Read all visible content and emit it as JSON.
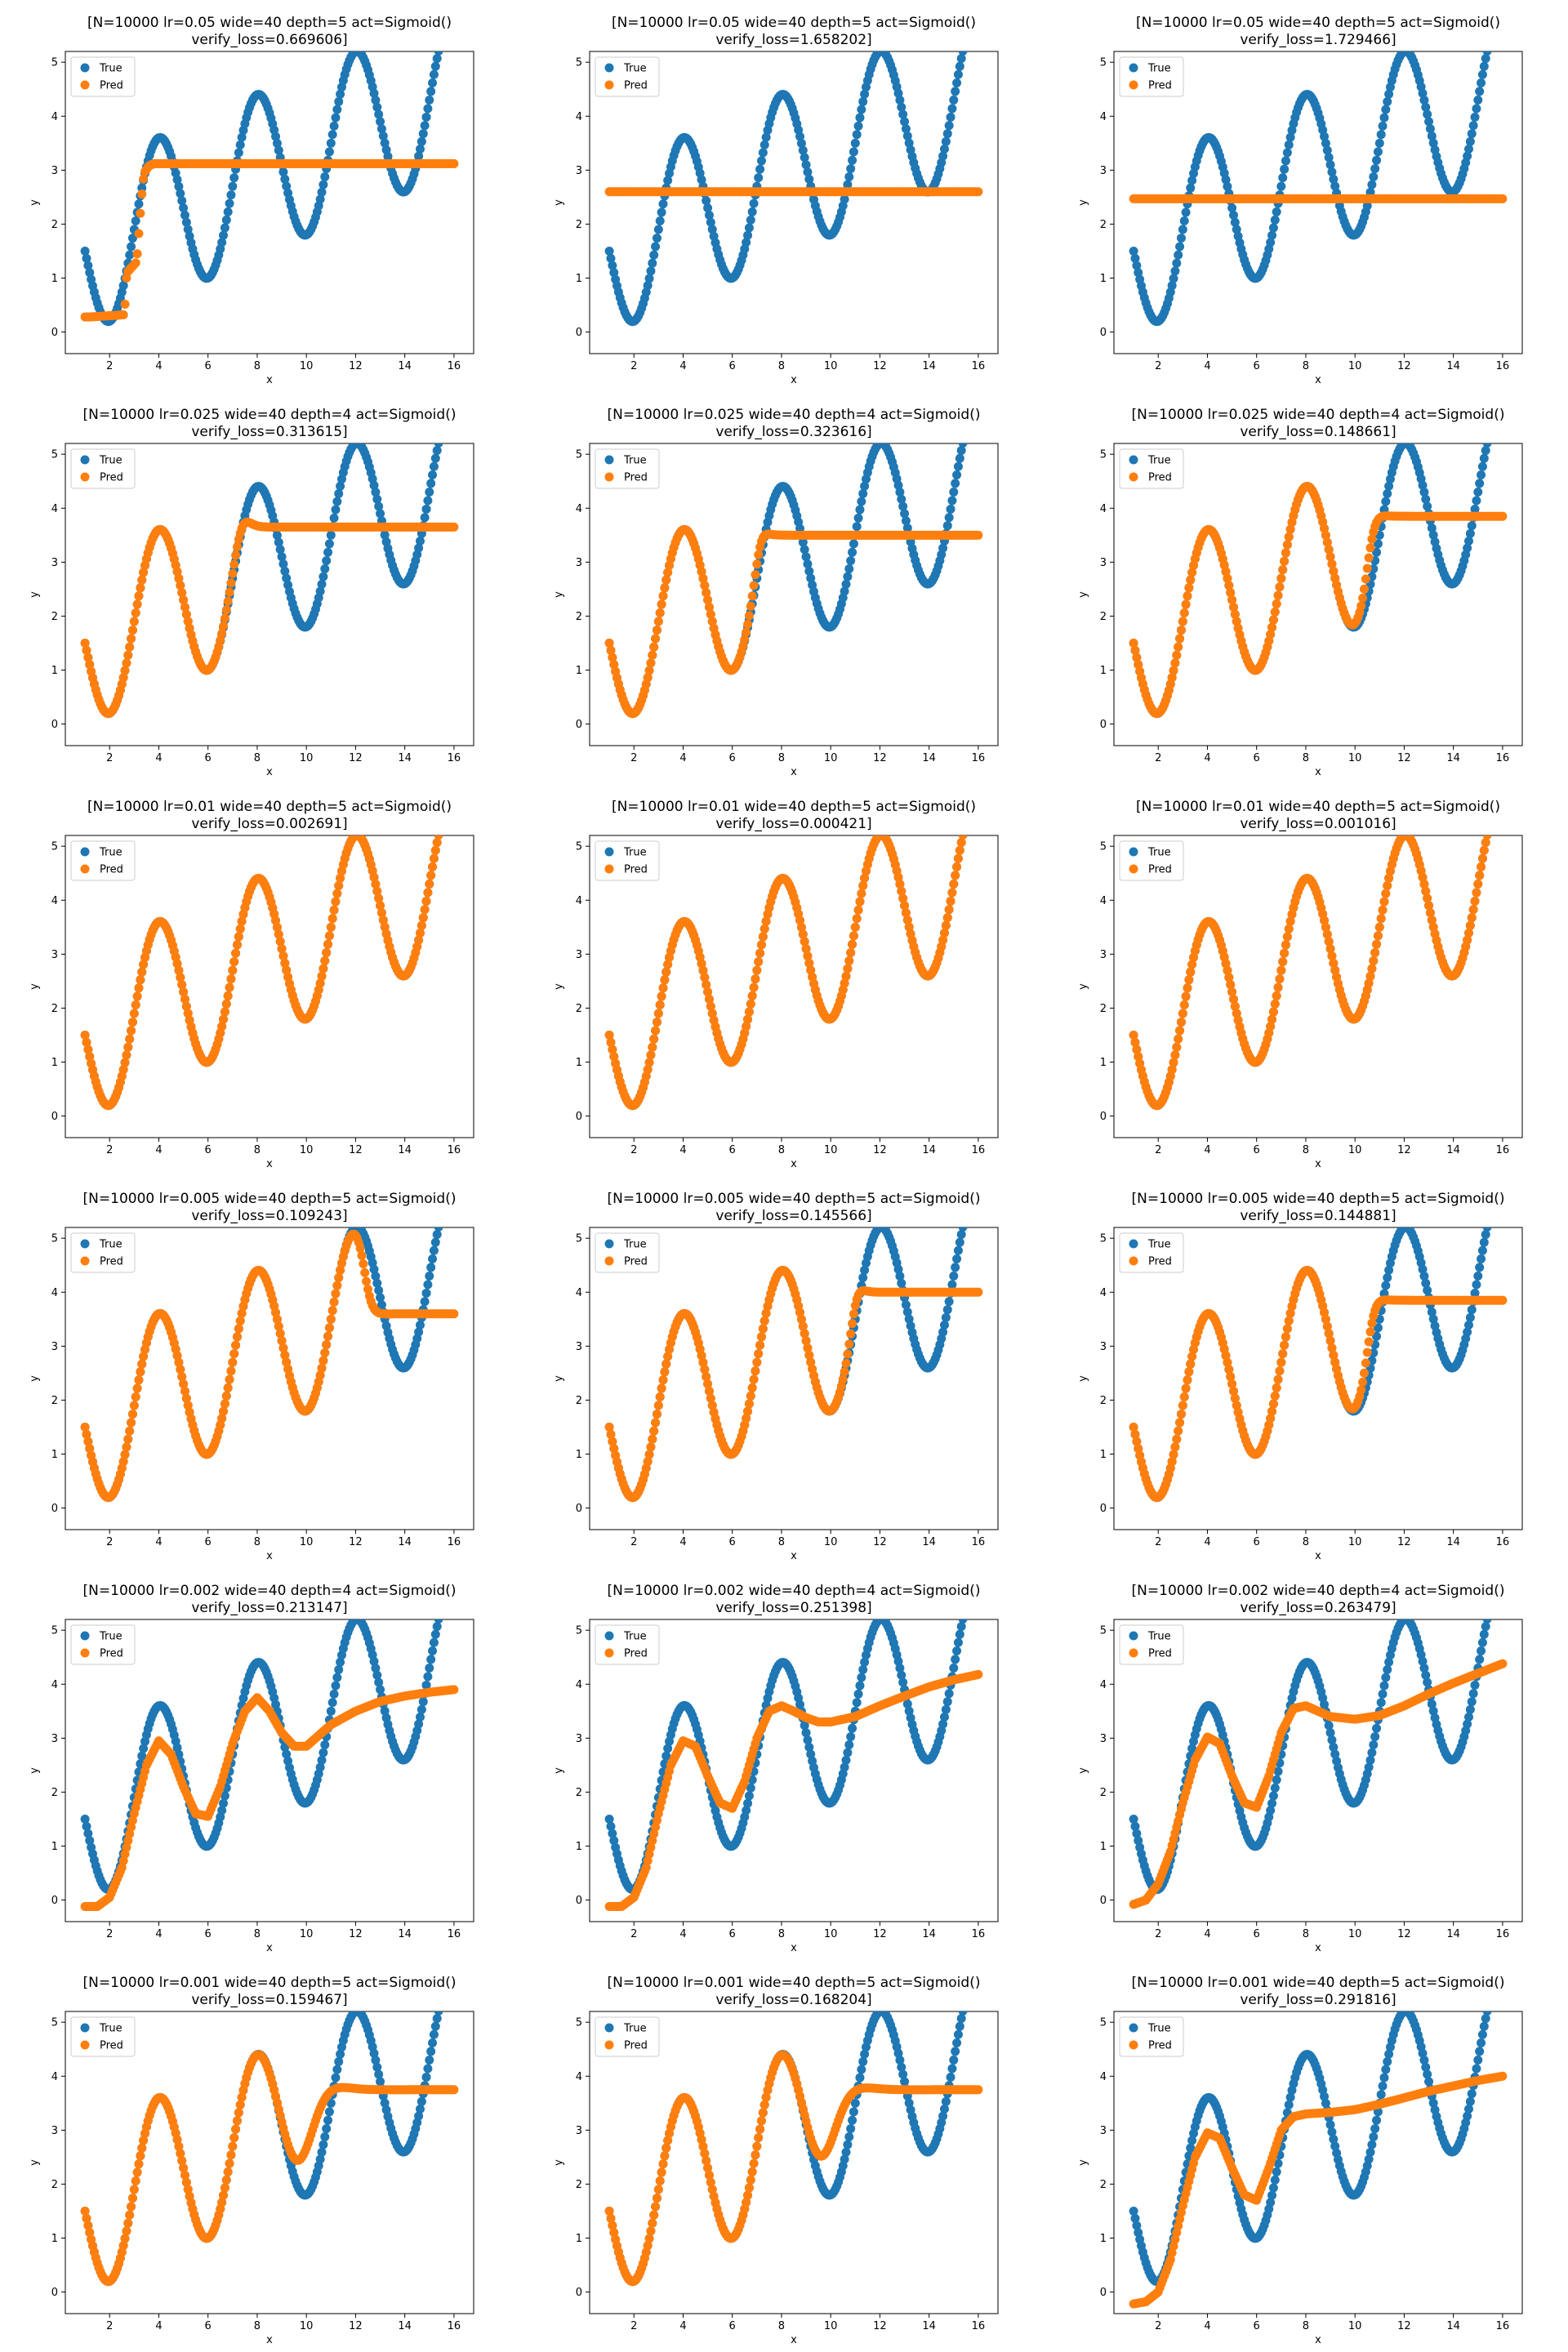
{
  "figure": {
    "background": "#ffffff",
    "colors": {
      "True": "#1f77b4",
      "Pred": "#ff7f0e"
    }
  },
  "chart_data": [
    {
      "type": "scatter",
      "title": "[N=10000 lr=0.05 wide=40 depth=5 act=Sigmoid()",
      "subtitle": "verify_loss=0.669606]",
      "xlabel": "x",
      "ylabel": "y",
      "xlim": [
        0.2,
        16.8
      ],
      "ylim": [
        -0.4,
        5.2
      ],
      "xticks": [
        2,
        4,
        6,
        8,
        10,
        12,
        14,
        16
      ],
      "yticks": [
        0,
        1,
        2,
        3,
        4,
        5
      ],
      "legend": [
        "True",
        "Pred"
      ],
      "legend_position": "upper left",
      "pred": {
        "kind": "piecewise",
        "knots": [
          [
            1,
            0.28
          ],
          [
            1.2,
            0.28
          ],
          [
            2.6,
            0.32
          ],
          [
            2.7,
            1.1
          ],
          [
            3.1,
            1.3
          ],
          [
            3.2,
            1.9
          ],
          [
            3.3,
            2.5
          ],
          [
            3.4,
            2.95
          ],
          [
            3.6,
            3.08
          ],
          [
            3.8,
            3.12
          ],
          [
            16,
            3.12
          ]
        ]
      }
    },
    {
      "type": "scatter",
      "title": "[N=10000 lr=0.05 wide=40 depth=5 act=Sigmoid()",
      "subtitle": "verify_loss=1.658202]",
      "xlabel": "x",
      "ylabel": "y",
      "xlim": [
        0.2,
        16.8
      ],
      "ylim": [
        -0.4,
        5.2
      ],
      "xticks": [
        2,
        4,
        6,
        8,
        10,
        12,
        14,
        16
      ],
      "yticks": [
        0,
        1,
        2,
        3,
        4,
        5
      ],
      "legend": [
        "True",
        "Pred"
      ],
      "legend_position": "upper left",
      "pred": {
        "kind": "piecewise",
        "knots": [
          [
            1,
            2.6
          ],
          [
            16,
            2.6
          ]
        ]
      }
    },
    {
      "type": "scatter",
      "title": "[N=10000 lr=0.05 wide=40 depth=5 act=Sigmoid()",
      "subtitle": "verify_loss=1.729466]",
      "xlabel": "x",
      "ylabel": "y",
      "xlim": [
        0.2,
        16.8
      ],
      "ylim": [
        -0.4,
        5.2
      ],
      "xticks": [
        2,
        4,
        6,
        8,
        10,
        12,
        14,
        16
      ],
      "yticks": [
        0,
        1,
        2,
        3,
        4,
        5
      ],
      "legend": [
        "True",
        "Pred"
      ],
      "legend_position": "upper left",
      "pred": {
        "kind": "piecewise",
        "knots": [
          [
            1,
            2.47
          ],
          [
            16,
            2.47
          ]
        ]
      }
    },
    {
      "type": "scatter",
      "title": "[N=10000 lr=0.025 wide=40 depth=4 act=Sigmoid()",
      "subtitle": "verify_loss=0.313615]",
      "xlabel": "x",
      "ylabel": "y",
      "xlim": [
        0.2,
        16.8
      ],
      "ylim": [
        -0.4,
        5.2
      ],
      "xticks": [
        2,
        4,
        6,
        8,
        10,
        12,
        14,
        16
      ],
      "yticks": [
        0,
        1,
        2,
        3,
        4,
        5
      ],
      "legend": [
        "True",
        "Pred"
      ],
      "legend_position": "upper left",
      "pred": {
        "kind": "follow",
        "until": 7.4,
        "plateau": 3.65,
        "width": 0.5
      }
    },
    {
      "type": "scatter",
      "title": "[N=10000 lr=0.025 wide=40 depth=4 act=Sigmoid()",
      "subtitle": "verify_loss=0.323616]",
      "xlabel": "x",
      "ylabel": "y",
      "xlim": [
        0.2,
        16.8
      ],
      "ylim": [
        -0.4,
        5.2
      ],
      "xticks": [
        2,
        4,
        6,
        8,
        10,
        12,
        14,
        16
      ],
      "yticks": [
        0,
        1,
        2,
        3,
        4,
        5
      ],
      "legend": [
        "True",
        "Pred"
      ],
      "legend_position": "upper left",
      "pred": {
        "kind": "follow",
        "until": 7.1,
        "plateau": 3.5,
        "width": 0.4
      }
    },
    {
      "type": "scatter",
      "title": "[N=10000 lr=0.025 wide=40 depth=4 act=Sigmoid()",
      "subtitle": "verify_loss=0.148661]",
      "xlabel": "x",
      "ylabel": "y",
      "xlim": [
        0.2,
        16.8
      ],
      "ylim": [
        -0.4,
        5.2
      ],
      "xticks": [
        2,
        4,
        6,
        8,
        10,
        12,
        14,
        16
      ],
      "yticks": [
        0,
        1,
        2,
        3,
        4,
        5
      ],
      "legend": [
        "True",
        "Pred"
      ],
      "legend_position": "upper left",
      "pred": {
        "kind": "follow",
        "until": 10.6,
        "plateau": 3.85,
        "width": 0.5
      }
    },
    {
      "type": "scatter",
      "title": "[N=10000 lr=0.01 wide=40 depth=5 act=Sigmoid()",
      "subtitle": "verify_loss=0.002691]",
      "xlabel": "x",
      "ylabel": "y",
      "xlim": [
        0.2,
        16.8
      ],
      "ylim": [
        -0.4,
        5.2
      ],
      "xticks": [
        2,
        4,
        6,
        8,
        10,
        12,
        14,
        16
      ],
      "yticks": [
        0,
        1,
        2,
        3,
        4,
        5
      ],
      "legend": [
        "True",
        "Pred"
      ],
      "legend_position": "upper left",
      "pred": {
        "kind": "follow",
        "until": 16,
        "plateau": 5,
        "width": 0.3
      }
    },
    {
      "type": "scatter",
      "title": "[N=10000 lr=0.01 wide=40 depth=5 act=Sigmoid()",
      "subtitle": "verify_loss=0.000421]",
      "xlabel": "x",
      "ylabel": "y",
      "xlim": [
        0.2,
        16.8
      ],
      "ylim": [
        -0.4,
        5.2
      ],
      "xticks": [
        2,
        4,
        6,
        8,
        10,
        12,
        14,
        16
      ],
      "yticks": [
        0,
        1,
        2,
        3,
        4,
        5
      ],
      "legend": [
        "True",
        "Pred"
      ],
      "legend_position": "upper left",
      "pred": {
        "kind": "follow",
        "until": 16,
        "plateau": 5,
        "width": 0.3
      }
    },
    {
      "type": "scatter",
      "title": "[N=10000 lr=0.01 wide=40 depth=5 act=Sigmoid()",
      "subtitle": "verify_loss=0.001016]",
      "xlabel": "x",
      "ylabel": "y",
      "xlim": [
        0.2,
        16.8
      ],
      "ylim": [
        -0.4,
        5.2
      ],
      "xticks": [
        2,
        4,
        6,
        8,
        10,
        12,
        14,
        16
      ],
      "yticks": [
        0,
        1,
        2,
        3,
        4,
        5
      ],
      "legend": [
        "True",
        "Pred"
      ],
      "legend_position": "upper left",
      "pred": {
        "kind": "follow",
        "until": 16,
        "plateau": 5,
        "width": 0.3
      }
    },
    {
      "type": "scatter",
      "title": "[N=10000 lr=0.005 wide=40 depth=5 act=Sigmoid()",
      "subtitle": "verify_loss=0.109243]",
      "xlabel": "x",
      "ylabel": "y",
      "xlim": [
        0.2,
        16.8
      ],
      "ylim": [
        -0.4,
        5.2
      ],
      "xticks": [
        2,
        4,
        6,
        8,
        10,
        12,
        14,
        16
      ],
      "yticks": [
        0,
        1,
        2,
        3,
        4,
        5
      ],
      "legend": [
        "True",
        "Pred"
      ],
      "legend_position": "upper left",
      "pred": {
        "kind": "follow",
        "until": 12.4,
        "plateau": 3.6,
        "width": 0.5
      }
    },
    {
      "type": "scatter",
      "title": "[N=10000 lr=0.005 wide=40 depth=5 act=Sigmoid()",
      "subtitle": "verify_loss=0.145566]",
      "xlabel": "x",
      "ylabel": "y",
      "xlim": [
        0.2,
        16.8
      ],
      "ylim": [
        -0.4,
        5.2
      ],
      "xticks": [
        2,
        4,
        6,
        8,
        10,
        12,
        14,
        16
      ],
      "yticks": [
        0,
        1,
        2,
        3,
        4,
        5
      ],
      "legend": [
        "True",
        "Pred"
      ],
      "legend_position": "upper left",
      "pred": {
        "kind": "follow",
        "until": 11.0,
        "plateau": 4.0,
        "width": 0.4
      }
    },
    {
      "type": "scatter",
      "title": "[N=10000 lr=0.005 wide=40 depth=5 act=Sigmoid()",
      "subtitle": "verify_loss=0.144881]",
      "xlabel": "x",
      "ylabel": "y",
      "xlim": [
        0.2,
        16.8
      ],
      "ylim": [
        -0.4,
        5.2
      ],
      "xticks": [
        2,
        4,
        6,
        8,
        10,
        12,
        14,
        16
      ],
      "yticks": [
        0,
        1,
        2,
        3,
        4,
        5
      ],
      "legend": [
        "True",
        "Pred"
      ],
      "legend_position": "upper left",
      "pred": {
        "kind": "follow",
        "until": 10.6,
        "plateau": 3.85,
        "width": 0.5
      }
    },
    {
      "type": "scatter",
      "title": "[N=10000 lr=0.002 wide=40 depth=4 act=Sigmoid()",
      "subtitle": "verify_loss=0.213147]",
      "xlabel": "x",
      "ylabel": "y",
      "xlim": [
        0.2,
        16.8
      ],
      "ylim": [
        -0.4,
        5.2
      ],
      "xticks": [
        2,
        4,
        6,
        8,
        10,
        12,
        14,
        16
      ],
      "yticks": [
        0,
        1,
        2,
        3,
        4,
        5
      ],
      "legend": [
        "True",
        "Pred"
      ],
      "legend_position": "upper left",
      "pred": {
        "kind": "piecewise",
        "knots": [
          [
            1,
            -0.12
          ],
          [
            1.5,
            -0.12
          ],
          [
            2.0,
            0.05
          ],
          [
            2.5,
            0.6
          ],
          [
            3.0,
            1.6
          ],
          [
            3.5,
            2.5
          ],
          [
            4.0,
            2.95
          ],
          [
            4.5,
            2.7
          ],
          [
            5.0,
            2.1
          ],
          [
            5.5,
            1.6
          ],
          [
            6.0,
            1.55
          ],
          [
            6.5,
            2.1
          ],
          [
            7.0,
            2.9
          ],
          [
            7.5,
            3.5
          ],
          [
            8.0,
            3.75
          ],
          [
            8.5,
            3.5
          ],
          [
            9.0,
            3.1
          ],
          [
            9.5,
            2.85
          ],
          [
            10.0,
            2.85
          ],
          [
            10.5,
            3.05
          ],
          [
            11,
            3.25
          ],
          [
            12,
            3.5
          ],
          [
            13,
            3.68
          ],
          [
            14,
            3.78
          ],
          [
            15,
            3.85
          ],
          [
            16,
            3.9
          ]
        ]
      }
    },
    {
      "type": "scatter",
      "title": "[N=10000 lr=0.002 wide=40 depth=4 act=Sigmoid()",
      "subtitle": "verify_loss=0.251398]",
      "xlabel": "x",
      "ylabel": "y",
      "xlim": [
        0.2,
        16.8
      ],
      "ylim": [
        -0.4,
        5.2
      ],
      "xticks": [
        2,
        4,
        6,
        8,
        10,
        12,
        14,
        16
      ],
      "yticks": [
        0,
        1,
        2,
        3,
        4,
        5
      ],
      "legend": [
        "True",
        "Pred"
      ],
      "legend_position": "upper left",
      "pred": {
        "kind": "piecewise",
        "knots": [
          [
            1,
            -0.12
          ],
          [
            1.5,
            -0.12
          ],
          [
            2.0,
            0.05
          ],
          [
            2.5,
            0.6
          ],
          [
            3.0,
            1.6
          ],
          [
            3.5,
            2.5
          ],
          [
            4.0,
            2.95
          ],
          [
            4.5,
            2.85
          ],
          [
            5.0,
            2.3
          ],
          [
            5.5,
            1.8
          ],
          [
            6.0,
            1.7
          ],
          [
            6.5,
            2.2
          ],
          [
            7.0,
            3.0
          ],
          [
            7.5,
            3.5
          ],
          [
            8.0,
            3.6
          ],
          [
            8.5,
            3.5
          ],
          [
            9.0,
            3.38
          ],
          [
            9.5,
            3.3
          ],
          [
            10,
            3.3
          ],
          [
            11,
            3.4
          ],
          [
            12,
            3.6
          ],
          [
            13,
            3.78
          ],
          [
            14,
            3.95
          ],
          [
            15,
            4.08
          ],
          [
            16,
            4.18
          ]
        ]
      }
    },
    {
      "type": "scatter",
      "title": "[N=10000 lr=0.002 wide=40 depth=4 act=Sigmoid()",
      "subtitle": "verify_loss=0.263479]",
      "xlabel": "x",
      "ylabel": "y",
      "xlim": [
        0.2,
        16.8
      ],
      "ylim": [
        -0.4,
        5.2
      ],
      "xticks": [
        2,
        4,
        6,
        8,
        10,
        12,
        14,
        16
      ],
      "yticks": [
        0,
        1,
        2,
        3,
        4,
        5
      ],
      "legend": [
        "True",
        "Pred"
      ],
      "legend_position": "upper left",
      "pred": {
        "kind": "piecewise",
        "knots": [
          [
            1,
            -0.08
          ],
          [
            1.5,
            0.0
          ],
          [
            2.0,
            0.3
          ],
          [
            2.5,
            0.9
          ],
          [
            3.0,
            1.8
          ],
          [
            3.5,
            2.6
          ],
          [
            4.0,
            3.02
          ],
          [
            4.5,
            2.9
          ],
          [
            5.0,
            2.3
          ],
          [
            5.5,
            1.8
          ],
          [
            6.0,
            1.72
          ],
          [
            6.5,
            2.3
          ],
          [
            7.0,
            3.1
          ],
          [
            7.5,
            3.55
          ],
          [
            8.0,
            3.6
          ],
          [
            8.5,
            3.5
          ],
          [
            9.0,
            3.4
          ],
          [
            10,
            3.35
          ],
          [
            11,
            3.42
          ],
          [
            12,
            3.6
          ],
          [
            13,
            3.82
          ],
          [
            14,
            4.02
          ],
          [
            15,
            4.2
          ],
          [
            16,
            4.38
          ]
        ]
      }
    },
    {
      "type": "scatter",
      "title": "[N=10000 lr=0.001 wide=40 depth=5 act=Sigmoid()",
      "subtitle": "verify_loss=0.159467]",
      "xlabel": "x",
      "ylabel": "y",
      "xlim": [
        0.2,
        16.8
      ],
      "ylim": [
        -0.4,
        5.2
      ],
      "xticks": [
        2,
        4,
        6,
        8,
        10,
        12,
        14,
        16
      ],
      "yticks": [
        0,
        1,
        2,
        3,
        4,
        5
      ],
      "legend": [
        "True",
        "Pred"
      ],
      "legend_position": "upper left",
      "pred": {
        "kind": "follow",
        "until": 10.1,
        "plateau": 3.75,
        "width": 1.3
      }
    },
    {
      "type": "scatter",
      "title": "[N=10000 lr=0.001 wide=40 depth=5 act=Sigmoid()",
      "subtitle": "verify_loss=0.168204]",
      "xlabel": "x",
      "ylabel": "y",
      "xlim": [
        0.2,
        16.8
      ],
      "ylim": [
        -0.4,
        5.2
      ],
      "xticks": [
        2,
        4,
        6,
        8,
        10,
        12,
        14,
        16
      ],
      "yticks": [
        0,
        1,
        2,
        3,
        4,
        5
      ],
      "legend": [
        "True",
        "Pred"
      ],
      "legend_position": "upper left",
      "pred": {
        "kind": "follow",
        "until": 10.0,
        "plateau": 3.75,
        "width": 1.3
      }
    },
    {
      "type": "scatter",
      "title": "[N=10000 lr=0.001 wide=40 depth=5 act=Sigmoid()",
      "subtitle": "verify_loss=0.291816]",
      "xlabel": "x",
      "ylabel": "y",
      "xlim": [
        0.2,
        16.8
      ],
      "ylim": [
        -0.4,
        5.2
      ],
      "xticks": [
        2,
        4,
        6,
        8,
        10,
        12,
        14,
        16
      ],
      "yticks": [
        0,
        1,
        2,
        3,
        4,
        5
      ],
      "legend": [
        "True",
        "Pred"
      ],
      "legend_position": "upper left",
      "pred": {
        "kind": "piecewise",
        "knots": [
          [
            1,
            -0.22
          ],
          [
            1.5,
            -0.18
          ],
          [
            2.0,
            0.0
          ],
          [
            2.5,
            0.6
          ],
          [
            3.0,
            1.6
          ],
          [
            3.5,
            2.5
          ],
          [
            4.0,
            2.95
          ],
          [
            4.5,
            2.85
          ],
          [
            5.0,
            2.3
          ],
          [
            5.5,
            1.8
          ],
          [
            6.0,
            1.7
          ],
          [
            6.5,
            2.3
          ],
          [
            7.0,
            3.0
          ],
          [
            7.5,
            3.25
          ],
          [
            8,
            3.3
          ],
          [
            9,
            3.33
          ],
          [
            10,
            3.38
          ],
          [
            11,
            3.48
          ],
          [
            12,
            3.6
          ],
          [
            13,
            3.72
          ],
          [
            14,
            3.82
          ],
          [
            15,
            3.92
          ],
          [
            16,
            4.0
          ]
        ]
      }
    }
  ]
}
